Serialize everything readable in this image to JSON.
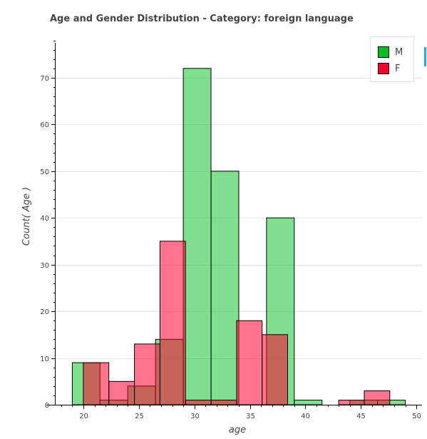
{
  "chart_data": {
    "type": "bar",
    "title": "Age and Gender Distribution - Category: foreign language",
    "xlabel": "age",
    "ylabel": "Count( Age )",
    "xlim": [
      17.5,
      50.5
    ],
    "ylim": [
      0,
      79
    ],
    "x_ticks": [
      20,
      25,
      30,
      35,
      40,
      45,
      50
    ],
    "y_ticks": [
      0,
      10,
      20,
      30,
      40,
      50,
      60,
      70
    ],
    "grid": "horizontal",
    "legend_position": "top-right",
    "series": [
      {
        "name": "M",
        "color": "#00bf20",
        "fill_opacity": 0.5,
        "bins": [
          {
            "x0": 19.0,
            "x1": 21.5,
            "count": 9
          },
          {
            "x0": 21.5,
            "x1": 24.0,
            "count": 1
          },
          {
            "x0": 24.0,
            "x1": 26.5,
            "count": 4
          },
          {
            "x0": 26.5,
            "x1": 29.0,
            "count": 14
          },
          {
            "x0": 29.0,
            "x1": 31.5,
            "count": 72
          },
          {
            "x0": 31.5,
            "x1": 34.0,
            "count": 50
          },
          {
            "x0": 34.0,
            "x1": 36.5,
            "count": 0
          },
          {
            "x0": 36.5,
            "x1": 39.0,
            "count": 40
          },
          {
            "x0": 39.0,
            "x1": 41.5,
            "count": 1
          },
          {
            "x0": 41.5,
            "x1": 44.0,
            "count": 0
          },
          {
            "x0": 44.0,
            "x1": 46.5,
            "count": 1
          },
          {
            "x0": 46.5,
            "x1": 49.0,
            "count": 1
          }
        ]
      },
      {
        "name": "F",
        "color": "#ff0030",
        "fill_opacity": 0.55,
        "bins": [
          {
            "x0": 20.0,
            "x1": 22.3,
            "count": 9
          },
          {
            "x0": 22.3,
            "x1": 24.6,
            "count": 5
          },
          {
            "x0": 24.6,
            "x1": 26.9,
            "count": 13
          },
          {
            "x0": 26.9,
            "x1": 29.2,
            "count": 35
          },
          {
            "x0": 29.2,
            "x1": 31.5,
            "count": 1
          },
          {
            "x0": 31.5,
            "x1": 33.8,
            "count": 1
          },
          {
            "x0": 33.8,
            "x1": 36.1,
            "count": 18
          },
          {
            "x0": 36.1,
            "x1": 38.4,
            "count": 15
          },
          {
            "x0": 38.4,
            "x1": 40.7,
            "count": 0
          },
          {
            "x0": 40.7,
            "x1": 43.0,
            "count": 0
          },
          {
            "x0": 43.0,
            "x1": 45.3,
            "count": 1
          },
          {
            "x0": 45.3,
            "x1": 47.6,
            "count": 3
          }
        ]
      }
    ]
  }
}
